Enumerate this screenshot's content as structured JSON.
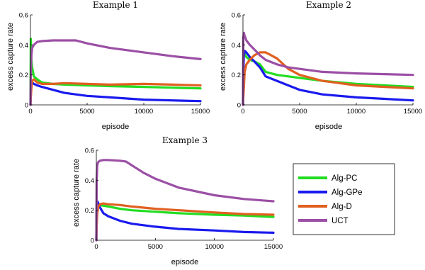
{
  "legend": {
    "entries": [
      {
        "name": "Alg-PC",
        "color": "#22dd22"
      },
      {
        "name": "Alg-GPe",
        "color": "#1a1aee"
      },
      {
        "name": "Alg-D",
        "color": "#e06020"
      },
      {
        "name": "UCT",
        "color": "#9b4fa5"
      }
    ]
  },
  "chart_data": [
    {
      "type": "line",
      "title": "Example 1",
      "xlabel": "episode",
      "ylabel": "excess capture rate",
      "xlim": [
        0,
        15000
      ],
      "ylim": [
        0,
        0.6
      ],
      "xticks": [
        0,
        5000,
        10000,
        15000
      ],
      "yticks": [
        0,
        0.2,
        0.4,
        0.6
      ],
      "series": [
        {
          "name": "Alg-PC",
          "color": "#22dd22",
          "x": [
            0,
            30,
            80,
            150,
            300,
            600,
            1000,
            2000,
            3000,
            5000,
            7000,
            10000,
            12500,
            15000
          ],
          "y": [
            0,
            0.44,
            0.3,
            0.25,
            0.19,
            0.17,
            0.15,
            0.14,
            0.135,
            0.13,
            0.125,
            0.12,
            0.115,
            0.11
          ]
        },
        {
          "name": "Alg-GPe",
          "color": "#1a1aee",
          "x": [
            0,
            30,
            80,
            150,
            300,
            600,
            1000,
            2000,
            3000,
            5000,
            7000,
            10000,
            12500,
            15000
          ],
          "y": [
            0,
            0.1,
            0.14,
            0.15,
            0.14,
            0.13,
            0.12,
            0.1,
            0.08,
            0.06,
            0.05,
            0.035,
            0.03,
            0.025
          ]
        },
        {
          "name": "Alg-D",
          "color": "#e06020",
          "x": [
            0,
            30,
            80,
            150,
            300,
            600,
            1000,
            2000,
            3000,
            5000,
            7000,
            10000,
            12500,
            15000
          ],
          "y": [
            0,
            0.05,
            0.11,
            0.16,
            0.17,
            0.15,
            0.14,
            0.14,
            0.145,
            0.14,
            0.135,
            0.14,
            0.135,
            0.13
          ]
        },
        {
          "name": "UCT",
          "color": "#9b4fa5",
          "x": [
            0,
            30,
            80,
            150,
            300,
            600,
            1000,
            2000,
            3000,
            4000,
            5000,
            7000,
            10000,
            12500,
            15000
          ],
          "y": [
            0,
            0.2,
            0.33,
            0.38,
            0.4,
            0.42,
            0.425,
            0.43,
            0.43,
            0.43,
            0.41,
            0.38,
            0.35,
            0.325,
            0.305
          ]
        }
      ]
    },
    {
      "type": "line",
      "title": "Example 2",
      "xlabel": "episode",
      "ylabel": "excess capture rate",
      "xlim": [
        0,
        15000
      ],
      "ylim": [
        0,
        0.6
      ],
      "xticks": [
        0,
        5000,
        10000,
        15000
      ],
      "yticks": [
        0,
        0.2,
        0.4,
        0.6
      ],
      "series": [
        {
          "name": "Alg-PC",
          "color": "#22dd22",
          "x": [
            0,
            30,
            80,
            150,
            300,
            600,
            1000,
            1500,
            2000,
            3000,
            4000,
            5000,
            7000,
            10000,
            12500,
            15000
          ],
          "y": [
            0,
            0.28,
            0.36,
            0.34,
            0.32,
            0.3,
            0.29,
            0.27,
            0.22,
            0.2,
            0.19,
            0.18,
            0.16,
            0.14,
            0.13,
            0.12
          ]
        },
        {
          "name": "Alg-GPe",
          "color": "#1a1aee",
          "x": [
            0,
            30,
            80,
            150,
            300,
            600,
            1000,
            1500,
            2000,
            3000,
            4000,
            5000,
            7000,
            10000,
            12500,
            15000
          ],
          "y": [
            0,
            0.2,
            0.33,
            0.36,
            0.35,
            0.32,
            0.29,
            0.25,
            0.19,
            0.16,
            0.13,
            0.1,
            0.07,
            0.05,
            0.04,
            0.03
          ]
        },
        {
          "name": "Alg-D",
          "color": "#e06020",
          "x": [
            0,
            30,
            80,
            150,
            300,
            600,
            1000,
            1500,
            2000,
            3000,
            4000,
            5000,
            7000,
            10000,
            12500,
            15000
          ],
          "y": [
            0,
            0.05,
            0.12,
            0.22,
            0.27,
            0.3,
            0.33,
            0.35,
            0.35,
            0.31,
            0.24,
            0.2,
            0.16,
            0.13,
            0.12,
            0.11
          ]
        },
        {
          "name": "UCT",
          "color": "#9b4fa5",
          "x": [
            0,
            30,
            80,
            150,
            300,
            600,
            1000,
            1500,
            2000,
            3000,
            4000,
            5000,
            7000,
            10000,
            12500,
            15000
          ],
          "y": [
            0,
            0.45,
            0.48,
            0.46,
            0.43,
            0.4,
            0.37,
            0.33,
            0.3,
            0.27,
            0.25,
            0.24,
            0.22,
            0.21,
            0.205,
            0.2
          ]
        }
      ]
    },
    {
      "type": "line",
      "title": "Example 3",
      "xlabel": "episode",
      "ylabel": "excess capture rate",
      "xlim": [
        0,
        15000
      ],
      "ylim": [
        0,
        0.6
      ],
      "xticks": [
        0,
        5000,
        10000,
        15000
      ],
      "yticks": [
        0,
        0.2,
        0.4,
        0.6
      ],
      "series": [
        {
          "name": "Alg-PC",
          "color": "#22dd22",
          "x": [
            0,
            30,
            80,
            150,
            300,
            600,
            1000,
            2000,
            3000,
            5000,
            7000,
            10000,
            12500,
            15000
          ],
          "y": [
            0,
            0.18,
            0.23,
            0.24,
            0.235,
            0.23,
            0.225,
            0.21,
            0.2,
            0.19,
            0.18,
            0.17,
            0.165,
            0.155
          ]
        },
        {
          "name": "Alg-GPe",
          "color": "#1a1aee",
          "x": [
            0,
            30,
            80,
            150,
            300,
            600,
            1000,
            2000,
            3000,
            5000,
            7000,
            10000,
            12500,
            15000
          ],
          "y": [
            0,
            0.24,
            0.26,
            0.25,
            0.22,
            0.18,
            0.16,
            0.13,
            0.11,
            0.09,
            0.075,
            0.065,
            0.055,
            0.05
          ]
        },
        {
          "name": "Alg-D",
          "color": "#e06020",
          "x": [
            0,
            30,
            80,
            150,
            300,
            600,
            1000,
            2000,
            3000,
            5000,
            7000,
            10000,
            12500,
            15000
          ],
          "y": [
            0,
            0.1,
            0.18,
            0.22,
            0.24,
            0.245,
            0.24,
            0.235,
            0.225,
            0.21,
            0.2,
            0.185,
            0.175,
            0.17
          ]
        },
        {
          "name": "UCT",
          "color": "#9b4fa5",
          "x": [
            0,
            30,
            80,
            150,
            300,
            600,
            1000,
            2000,
            2500,
            3000,
            4000,
            5000,
            7000,
            10000,
            12500,
            15000
          ],
          "y": [
            0,
            0.4,
            0.5,
            0.52,
            0.53,
            0.535,
            0.535,
            0.53,
            0.525,
            0.5,
            0.45,
            0.41,
            0.35,
            0.3,
            0.275,
            0.26
          ]
        }
      ]
    }
  ]
}
